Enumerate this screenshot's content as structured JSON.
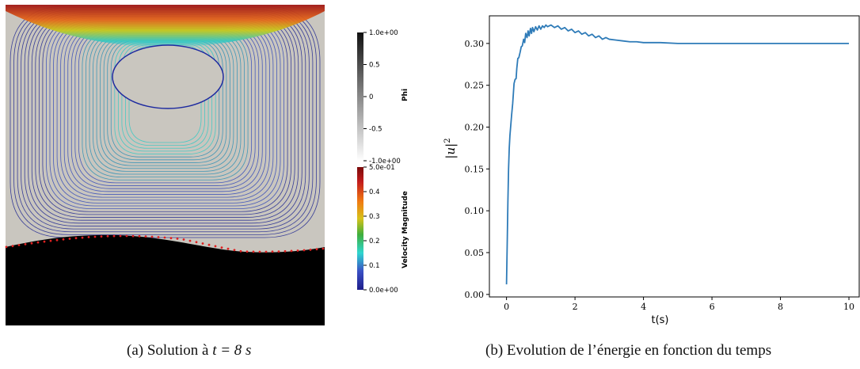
{
  "panel_a": {
    "caption_label": "(a)",
    "caption_text_pre": "Solution à",
    "caption_math": "t = 8 s",
    "colorbar_phi": {
      "title": "Phi",
      "ticks": [
        "1.0e+00",
        "0.5",
        "0",
        "-0.5",
        "-1.0e+00"
      ],
      "tick_values": [
        1.0,
        0.5,
        0.0,
        -0.5,
        -1.0
      ]
    },
    "colorbar_velocity": {
      "title": "Velocity Magnitude",
      "ticks": [
        "5.0e-01",
        "0.4",
        "0.3",
        "0.2",
        "0.1",
        "0.0e+00"
      ],
      "tick_values": [
        0.5,
        0.4,
        0.3,
        0.2,
        0.1,
        0.0
      ]
    },
    "colors": {
      "free_surface_marker": "#e02020",
      "liquid": "#000000",
      "gas": "#c9c6bf"
    }
  },
  "panel_b": {
    "caption_label": "(b)",
    "caption_text": "Evolution de l’énergie en fonction du temps"
  },
  "chart_data": [
    {
      "type": "line",
      "title": "",
      "xlabel": "t(s)",
      "ylabel": "|u|²",
      "ylabel_base": "|u|",
      "ylabel_sup": "2",
      "xlim": [
        -0.5,
        10.3
      ],
      "ylim": [
        -0.003,
        0.333
      ],
      "xticks": [
        0,
        2,
        4,
        6,
        8,
        10
      ],
      "xtick_labels": [
        "0",
        "2",
        "4",
        "6",
        "8",
        "10"
      ],
      "yticks": [
        0.0,
        0.05,
        0.1,
        0.15,
        0.2,
        0.25,
        0.3
      ],
      "ytick_labels": [
        "0.00",
        "0.05",
        "0.10",
        "0.15",
        "0.20",
        "0.25",
        "0.30"
      ],
      "grid": false,
      "color": "#2e7bb8",
      "series": [
        {
          "x": [
            0,
            0.02,
            0.04,
            0.06,
            0.08,
            0.1,
            0.12,
            0.15,
            0.18,
            0.2,
            0.22,
            0.25,
            0.28,
            0.3,
            0.33,
            0.36,
            0.4,
            0.43,
            0.46,
            0.5,
            0.53,
            0.56,
            0.6,
            0.63,
            0.66,
            0.7,
            0.73,
            0.76,
            0.8,
            0.85,
            0.9,
            0.95,
            1.0,
            1.05,
            1.1,
            1.15,
            1.2,
            1.3,
            1.4,
            1.5,
            1.6,
            1.7,
            1.8,
            1.9,
            2.0,
            2.1,
            2.2,
            2.3,
            2.4,
            2.5,
            2.6,
            2.7,
            2.8,
            2.9,
            3.0,
            3.2,
            3.4,
            3.6,
            3.8,
            4.0,
            4.5,
            5.0,
            6.0,
            7.0,
            8.0,
            9.0,
            10.0
          ],
          "y": [
            0.012,
            0.06,
            0.11,
            0.15,
            0.175,
            0.19,
            0.2,
            0.215,
            0.228,
            0.24,
            0.252,
            0.257,
            0.258,
            0.27,
            0.282,
            0.283,
            0.29,
            0.296,
            0.297,
            0.305,
            0.301,
            0.312,
            0.307,
            0.315,
            0.309,
            0.318,
            0.312,
            0.319,
            0.314,
            0.32,
            0.316,
            0.321,
            0.317,
            0.321,
            0.319,
            0.322,
            0.32,
            0.322,
            0.319,
            0.321,
            0.317,
            0.319,
            0.315,
            0.317,
            0.313,
            0.315,
            0.311,
            0.313,
            0.309,
            0.311,
            0.307,
            0.309,
            0.305,
            0.307,
            0.305,
            0.304,
            0.303,
            0.302,
            0.302,
            0.301,
            0.301,
            0.3,
            0.3,
            0.3,
            0.3,
            0.3,
            0.3
          ]
        }
      ]
    }
  ]
}
